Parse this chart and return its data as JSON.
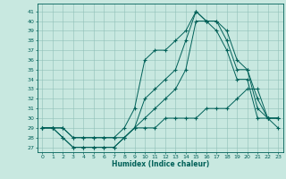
{
  "xlabel": "Humidex (Indice chaleur)",
  "xlim": [
    -0.5,
    23.5
  ],
  "ylim": [
    26.5,
    41.8
  ],
  "yticks": [
    27,
    28,
    29,
    30,
    31,
    32,
    33,
    34,
    35,
    36,
    37,
    38,
    39,
    40,
    41
  ],
  "xticks": [
    0,
    1,
    2,
    3,
    4,
    5,
    6,
    7,
    8,
    9,
    10,
    11,
    12,
    13,
    14,
    15,
    16,
    17,
    18,
    19,
    20,
    21,
    22,
    23
  ],
  "bg_color": "#c8e8e0",
  "grid_color": "#90c0b8",
  "line_color": "#006058",
  "lines": [
    {
      "x": [
        0,
        1,
        2,
        3,
        4,
        5,
        6,
        7,
        8,
        9,
        10,
        11,
        12,
        13,
        14,
        15,
        16,
        17,
        18,
        19,
        20,
        21,
        22,
        23
      ],
      "y": [
        29,
        29,
        29,
        28,
        28,
        28,
        28,
        28,
        29,
        31,
        36,
        37,
        37,
        38,
        39,
        41,
        40,
        40,
        39,
        36,
        35,
        32,
        30,
        30
      ]
    },
    {
      "x": [
        0,
        1,
        2,
        3,
        4,
        5,
        6,
        7,
        8,
        9,
        10,
        11,
        12,
        13,
        14,
        15,
        16,
        17,
        18,
        19,
        20,
        21,
        22,
        23
      ],
      "y": [
        29,
        29,
        28,
        27,
        27,
        27,
        27,
        27,
        28,
        29,
        32,
        33,
        34,
        35,
        38,
        41,
        40,
        40,
        38,
        35,
        35,
        31,
        30,
        30
      ]
    },
    {
      "x": [
        0,
        1,
        2,
        3,
        4,
        5,
        6,
        7,
        8,
        9,
        10,
        11,
        12,
        13,
        14,
        15,
        16,
        17,
        18,
        19,
        20,
        21,
        22,
        23
      ],
      "y": [
        29,
        29,
        28,
        27,
        27,
        27,
        27,
        27,
        28,
        29,
        30,
        31,
        32,
        33,
        35,
        40,
        40,
        39,
        37,
        34,
        34,
        30,
        30,
        30
      ]
    },
    {
      "x": [
        0,
        1,
        2,
        3,
        4,
        5,
        6,
        7,
        8,
        9,
        10,
        11,
        12,
        13,
        14,
        15,
        16,
        17,
        18,
        19,
        20,
        21,
        22,
        23
      ],
      "y": [
        29,
        29,
        29,
        28,
        28,
        28,
        28,
        28,
        28,
        29,
        29,
        29,
        30,
        30,
        30,
        30,
        31,
        31,
        31,
        32,
        33,
        33,
        30,
        29
      ]
    }
  ]
}
